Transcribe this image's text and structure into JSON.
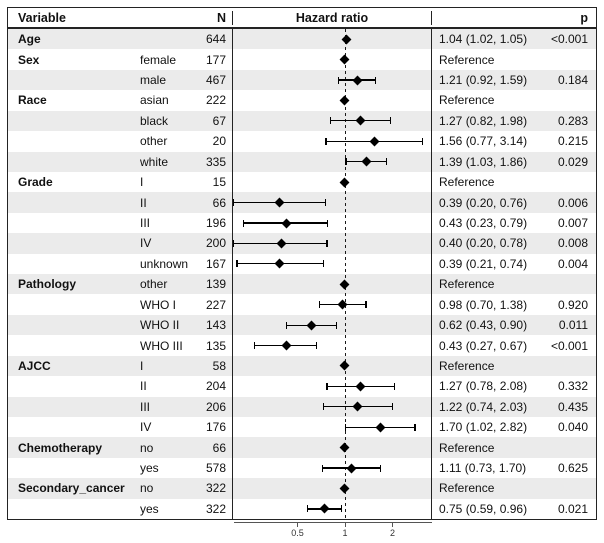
{
  "header": {
    "variable": "Variable",
    "n": "N",
    "hazard_ratio": "Hazard ratio",
    "p": "p"
  },
  "axis": {
    "tick_labels": [
      "0.5",
      "1",
      "2"
    ]
  },
  "colors": {
    "stripe": "#ebebeb",
    "border": "#232323",
    "marker": "#000000",
    "reference_line": "#1a1a1a",
    "axis": "#555555"
  },
  "chart_data": {
    "type": "scatter",
    "variant": "forest-plot",
    "title": "Hazard ratio",
    "x_scale": "log2",
    "x_ticks": [
      0.5,
      1,
      2
    ],
    "x_range": [
      0.17,
      3.6
    ],
    "reference_line": 1,
    "legend": "none",
    "rows": [
      {
        "variable": "Age",
        "subgroup": "",
        "n": 644,
        "hr": 1.04,
        "lo": 1.02,
        "hi": 1.05,
        "estimate": "1.04 (1.02, 1.05)",
        "p": "<0.001",
        "is_reference": false
      },
      {
        "variable": "Sex",
        "subgroup": "female",
        "n": 177,
        "hr": 1,
        "lo": null,
        "hi": null,
        "estimate": "Reference",
        "p": "",
        "is_reference": true
      },
      {
        "variable": "",
        "subgroup": "male",
        "n": 467,
        "hr": 1.21,
        "lo": 0.92,
        "hi": 1.59,
        "estimate": "1.21 (0.92, 1.59)",
        "p": "0.184",
        "is_reference": false
      },
      {
        "variable": "Race",
        "subgroup": "asian",
        "n": 222,
        "hr": 1,
        "lo": null,
        "hi": null,
        "estimate": "Reference",
        "p": "",
        "is_reference": true
      },
      {
        "variable": "",
        "subgroup": "black",
        "n": 67,
        "hr": 1.27,
        "lo": 0.82,
        "hi": 1.98,
        "estimate": "1.27 (0.82, 1.98)",
        "p": "0.283",
        "is_reference": false
      },
      {
        "variable": "",
        "subgroup": "other",
        "n": 20,
        "hr": 1.56,
        "lo": 0.77,
        "hi": 3.14,
        "estimate": "1.56 (0.77, 3.14)",
        "p": "0.215",
        "is_reference": false
      },
      {
        "variable": "",
        "subgroup": "white",
        "n": 335,
        "hr": 1.39,
        "lo": 1.03,
        "hi": 1.86,
        "estimate": "1.39 (1.03, 1.86)",
        "p": "0.029",
        "is_reference": false
      },
      {
        "variable": "Grade",
        "subgroup": "I",
        "n": 15,
        "hr": 1,
        "lo": null,
        "hi": null,
        "estimate": "Reference",
        "p": "",
        "is_reference": true
      },
      {
        "variable": "",
        "subgroup": "II",
        "n": 66,
        "hr": 0.39,
        "lo": 0.2,
        "hi": 0.76,
        "estimate": "0.39 (0.20, 0.76)",
        "p": "0.006",
        "is_reference": false
      },
      {
        "variable": "",
        "subgroup": "III",
        "n": 196,
        "hr": 0.43,
        "lo": 0.23,
        "hi": 0.79,
        "estimate": "0.43 (0.23, 0.79)",
        "p": "0.007",
        "is_reference": false
      },
      {
        "variable": "",
        "subgroup": "IV",
        "n": 200,
        "hr": 0.4,
        "lo": 0.2,
        "hi": 0.78,
        "estimate": "0.40 (0.20, 0.78)",
        "p": "0.008",
        "is_reference": false
      },
      {
        "variable": "",
        "subgroup": "unknown",
        "n": 167,
        "hr": 0.39,
        "lo": 0.21,
        "hi": 0.74,
        "estimate": "0.39 (0.21, 0.74)",
        "p": "0.004",
        "is_reference": false
      },
      {
        "variable": "Pathology",
        "subgroup": "other",
        "n": 139,
        "hr": 1,
        "lo": null,
        "hi": null,
        "estimate": "Reference",
        "p": "",
        "is_reference": true
      },
      {
        "variable": "",
        "subgroup": "WHO I",
        "n": 227,
        "hr": 0.98,
        "lo": 0.7,
        "hi": 1.38,
        "estimate": "0.98 (0.70, 1.38)",
        "p": "0.920",
        "is_reference": false
      },
      {
        "variable": "",
        "subgroup": "WHO II",
        "n": 143,
        "hr": 0.62,
        "lo": 0.43,
        "hi": 0.9,
        "estimate": "0.62 (0.43, 0.90)",
        "p": "0.011",
        "is_reference": false
      },
      {
        "variable": "",
        "subgroup": "WHO III",
        "n": 135,
        "hr": 0.43,
        "lo": 0.27,
        "hi": 0.67,
        "estimate": "0.43 (0.27, 0.67)",
        "p": "<0.001",
        "is_reference": false
      },
      {
        "variable": "AJCC",
        "subgroup": "I",
        "n": 58,
        "hr": 1,
        "lo": null,
        "hi": null,
        "estimate": "Reference",
        "p": "",
        "is_reference": true
      },
      {
        "variable": "",
        "subgroup": "II",
        "n": 204,
        "hr": 1.27,
        "lo": 0.78,
        "hi": 2.08,
        "estimate": "1.27 (0.78, 2.08)",
        "p": "0.332",
        "is_reference": false
      },
      {
        "variable": "",
        "subgroup": "III",
        "n": 206,
        "hr": 1.22,
        "lo": 0.74,
        "hi": 2.03,
        "estimate": "1.22 (0.74, 2.03)",
        "p": "0.435",
        "is_reference": false
      },
      {
        "variable": "",
        "subgroup": "IV",
        "n": 176,
        "hr": 1.7,
        "lo": 1.02,
        "hi": 2.82,
        "estimate": "1.70 (1.02, 2.82)",
        "p": "0.040",
        "is_reference": false
      },
      {
        "variable": "Chemotherapy",
        "subgroup": "no",
        "n": 66,
        "hr": 1,
        "lo": null,
        "hi": null,
        "estimate": "Reference",
        "p": "",
        "is_reference": true
      },
      {
        "variable": "",
        "subgroup": "yes",
        "n": 578,
        "hr": 1.11,
        "lo": 0.73,
        "hi": 1.7,
        "estimate": "1.11 (0.73, 1.70)",
        "p": "0.625",
        "is_reference": false
      },
      {
        "variable": "Secondary_cancer",
        "subgroup": "no",
        "n": 322,
        "hr": 1,
        "lo": null,
        "hi": null,
        "estimate": "Reference",
        "p": "",
        "is_reference": true
      },
      {
        "variable": "",
        "subgroup": "yes",
        "n": 322,
        "hr": 0.75,
        "lo": 0.59,
        "hi": 0.96,
        "estimate": "0.75 (0.59, 0.96)",
        "p": "0.021",
        "is_reference": false
      }
    ]
  }
}
